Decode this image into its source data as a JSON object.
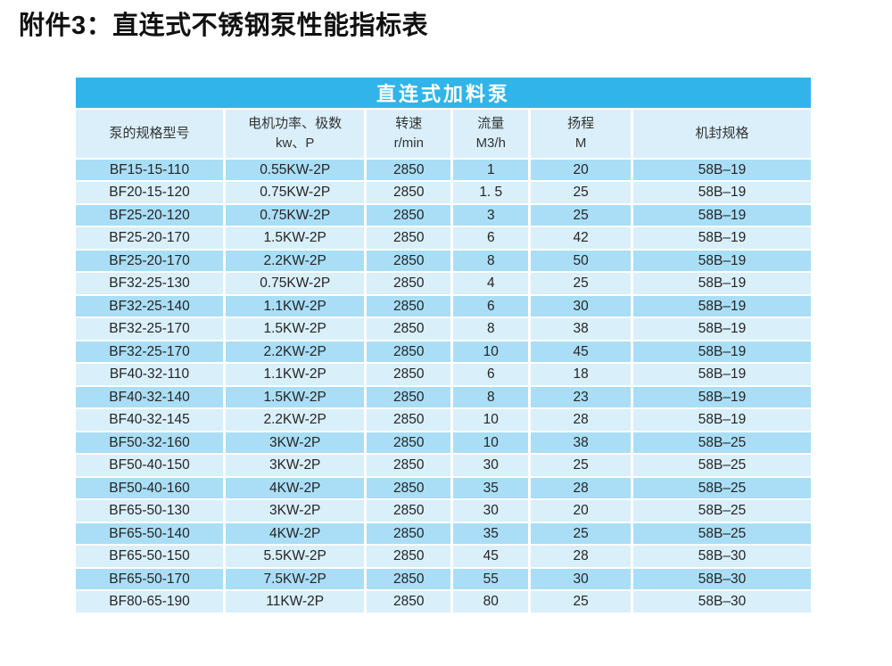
{
  "page": {
    "title": "附件3：直连式不锈钢泵性能指标表"
  },
  "table": {
    "banner": "直连式加料泵",
    "colors": {
      "banner_bg": "#30b4ea",
      "banner_text": "#ffffff",
      "header_bg": "#daeffa",
      "row_odd_bg": "#a9def6",
      "row_even_bg": "#d9effa",
      "cell_text": "#252525"
    },
    "columns": [
      {
        "id": "model",
        "label_lines": [
          "泵的规格型号"
        ]
      },
      {
        "id": "power",
        "label_lines": [
          "电机功率、极数",
          "kw、P"
        ]
      },
      {
        "id": "speed",
        "label_lines": [
          "转速",
          "r/min"
        ]
      },
      {
        "id": "flow",
        "label_lines": [
          "流量",
          "M3/h"
        ]
      },
      {
        "id": "head",
        "label_lines": [
          "扬程",
          "M"
        ]
      },
      {
        "id": "seal",
        "label_lines": [
          "机封规格"
        ]
      }
    ],
    "rows": [
      [
        "BF15-15-110",
        "0.55KW-2P",
        "2850",
        "1",
        "20",
        "58B–19"
      ],
      [
        "BF20-15-120",
        "0.75KW-2P",
        "2850",
        "1. 5",
        "25",
        "58B–19"
      ],
      [
        "BF25-20-120",
        "0.75KW-2P",
        "2850",
        "3",
        "25",
        "58B–19"
      ],
      [
        "BF25-20-170",
        "1.5KW-2P",
        "2850",
        "6",
        "42",
        "58B–19"
      ],
      [
        "BF25-20-170",
        "2.2KW-2P",
        "2850",
        "8",
        "50",
        "58B–19"
      ],
      [
        "BF32-25-130",
        "0.75KW-2P",
        "2850",
        "4",
        "25",
        "58B–19"
      ],
      [
        "BF32-25-140",
        "1.1KW-2P",
        "2850",
        "6",
        "30",
        "58B–19"
      ],
      [
        "BF32-25-170",
        "1.5KW-2P",
        "2850",
        "8",
        "38",
        "58B–19"
      ],
      [
        "BF32-25-170",
        "2.2KW-2P",
        "2850",
        "10",
        "45",
        "58B–19"
      ],
      [
        "BF40-32-110",
        "1.1KW-2P",
        "2850",
        "6",
        "18",
        "58B–19"
      ],
      [
        "BF40-32-140",
        "1.5KW-2P",
        "2850",
        "8",
        "23",
        "58B–19"
      ],
      [
        "BF40-32-145",
        "2.2KW-2P",
        "2850",
        "10",
        "28",
        "58B–19"
      ],
      [
        "BF50-32-160",
        "3KW-2P",
        "2850",
        "10",
        "38",
        "58B–25"
      ],
      [
        "BF50-40-150",
        "3KW-2P",
        "2850",
        "30",
        "25",
        "58B–25"
      ],
      [
        "BF50-40-160",
        "4KW-2P",
        "2850",
        "35",
        "28",
        "58B–25"
      ],
      [
        "BF65-50-130",
        "3KW-2P",
        "2850",
        "30",
        "20",
        "58B–25"
      ],
      [
        "BF65-50-140",
        "4KW-2P",
        "2850",
        "35",
        "25",
        "58B–25"
      ],
      [
        "BF65-50-150",
        "5.5KW-2P",
        "2850",
        "45",
        "28",
        "58B–30"
      ],
      [
        "BF65-50-170",
        "7.5KW-2P",
        "2850",
        "55",
        "30",
        "58B–30"
      ],
      [
        "BF80-65-190",
        "11KW-2P",
        "2850",
        "80",
        "25",
        "58B–30"
      ]
    ]
  }
}
